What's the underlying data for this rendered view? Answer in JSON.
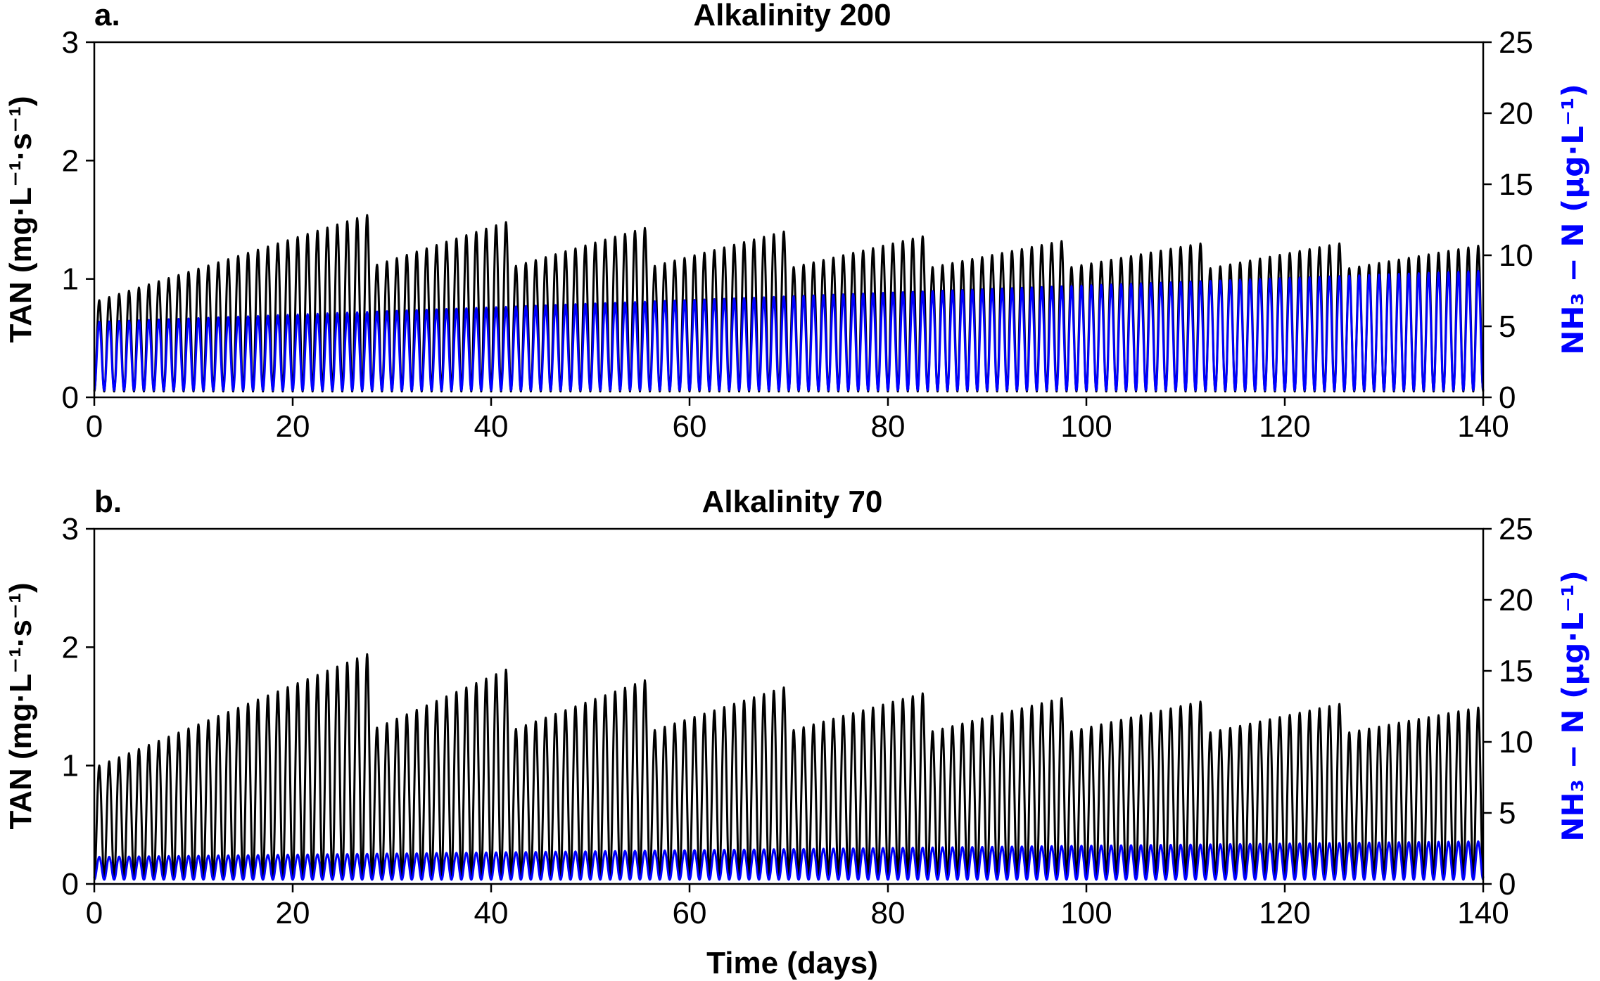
{
  "chart_data": [
    {
      "type": "line",
      "panel_label": "a.",
      "title": "Alkalinity 200",
      "xlabel": "",
      "ylabel": "TAN (mg·L⁻¹·s⁻¹)",
      "y2label": "NH₃ − N (μg·L⁻¹)",
      "xlim": [
        0,
        140
      ],
      "ylim": [
        0,
        3
      ],
      "y2lim": [
        0,
        25
      ],
      "xticks": [
        "0",
        "20",
        "40",
        "60",
        "80",
        "100",
        "120",
        "140"
      ],
      "yticks": [
        "0",
        "1",
        "2",
        "3"
      ],
      "y2ticks": [
        "0",
        "5",
        "10",
        "15",
        "20",
        "25"
      ],
      "grid": false,
      "series": [
        {
          "axis": "left",
          "color": "#000000",
          "pattern": "daily oscillation between ~0.05 and cycle peaks; peaks ramp up within each 14-day feeding cycle then reset",
          "cycles": [
            {
              "start_day": 0,
              "end_day": 28,
              "peak_start": 0.82,
              "peak_end": 1.54
            },
            {
              "start_day": 28,
              "end_day": 42,
              "peak_start": 1.12,
              "peak_end": 1.48
            },
            {
              "start_day": 42,
              "end_day": 56,
              "peak_start": 1.11,
              "peak_end": 1.43
            },
            {
              "start_day": 56,
              "end_day": 70,
              "peak_start": 1.11,
              "peak_end": 1.4
            },
            {
              "start_day": 70,
              "end_day": 84,
              "peak_start": 1.1,
              "peak_end": 1.36
            },
            {
              "start_day": 84,
              "end_day": 98,
              "peak_start": 1.1,
              "peak_end": 1.32
            },
            {
              "start_day": 98,
              "end_day": 112,
              "peak_start": 1.1,
              "peak_end": 1.3
            },
            {
              "start_day": 112,
              "end_day": 126,
              "peak_start": 1.09,
              "peak_end": 1.3
            },
            {
              "start_day": 126,
              "end_day": 140,
              "peak_start": 1.09,
              "peak_end": 1.28
            }
          ],
          "trough": 0.05
        },
        {
          "axis": "right",
          "color": "#0000ff",
          "pattern": "daily oscillation with slowly rising peaks",
          "peak_start": 5.3,
          "peak_end": 8.9,
          "trough": 0.5
        }
      ]
    },
    {
      "type": "line",
      "panel_label": "b.",
      "title": "Alkalinity 70",
      "xlabel": "Time (days)",
      "ylabel": "TAN (mg·L⁻¹·s⁻¹)",
      "y2label": "NH₃ − N (μg·L⁻¹)",
      "xlim": [
        0,
        140
      ],
      "ylim": [
        0,
        3
      ],
      "y2lim": [
        0,
        25
      ],
      "xticks": [
        "0",
        "20",
        "40",
        "60",
        "80",
        "100",
        "120",
        "140"
      ],
      "yticks": [
        "0",
        "1",
        "2",
        "3"
      ],
      "y2ticks": [
        "0",
        "5",
        "10",
        "15",
        "20",
        "25"
      ],
      "grid": false,
      "series": [
        {
          "axis": "left",
          "color": "#000000",
          "pattern": "daily oscillation between ~0.05 and cycle peaks; peaks ramp up within each 14-day feeding cycle then reset",
          "cycles": [
            {
              "start_day": 0,
              "end_day": 28,
              "peak_start": 1.0,
              "peak_end": 1.94
            },
            {
              "start_day": 28,
              "end_day": 42,
              "peak_start": 1.32,
              "peak_end": 1.81
            },
            {
              "start_day": 42,
              "end_day": 56,
              "peak_start": 1.31,
              "peak_end": 1.72
            },
            {
              "start_day": 56,
              "end_day": 70,
              "peak_start": 1.3,
              "peak_end": 1.66
            },
            {
              "start_day": 70,
              "end_day": 84,
              "peak_start": 1.3,
              "peak_end": 1.61
            },
            {
              "start_day": 84,
              "end_day": 98,
              "peak_start": 1.29,
              "peak_end": 1.57
            },
            {
              "start_day": 98,
              "end_day": 112,
              "peak_start": 1.29,
              "peak_end": 1.54
            },
            {
              "start_day": 112,
              "end_day": 126,
              "peak_start": 1.28,
              "peak_end": 1.52
            },
            {
              "start_day": 126,
              "end_day": 140,
              "peak_start": 1.28,
              "peak_end": 1.49
            }
          ],
          "trough": 0.05
        },
        {
          "axis": "right",
          "color": "#0000ff",
          "pattern": "daily oscillation with slowly rising peaks",
          "peak_start": 1.9,
          "peak_end": 3.0,
          "trough": 0.3
        }
      ]
    }
  ]
}
